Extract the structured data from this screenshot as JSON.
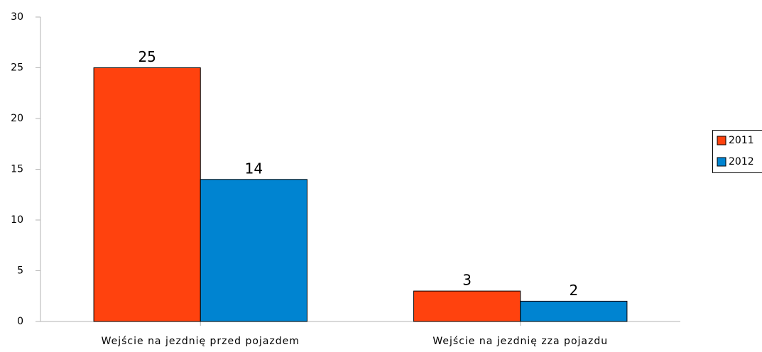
{
  "chart_data": {
    "type": "bar",
    "categories": [
      "Wejście na jezdnię przed pojazdem",
      "Wejście na jezdnię zza pojazdu"
    ],
    "series": [
      {
        "name": "2011",
        "color": "#ff420e",
        "values": [
          25,
          3
        ]
      },
      {
        "name": "2012",
        "color": "#0084d1",
        "values": [
          14,
          2
        ]
      }
    ],
    "ylim": [
      0,
      30
    ],
    "yticks": [
      0,
      5,
      10,
      15,
      20,
      25,
      30
    ],
    "grid": false,
    "legend": "right"
  }
}
